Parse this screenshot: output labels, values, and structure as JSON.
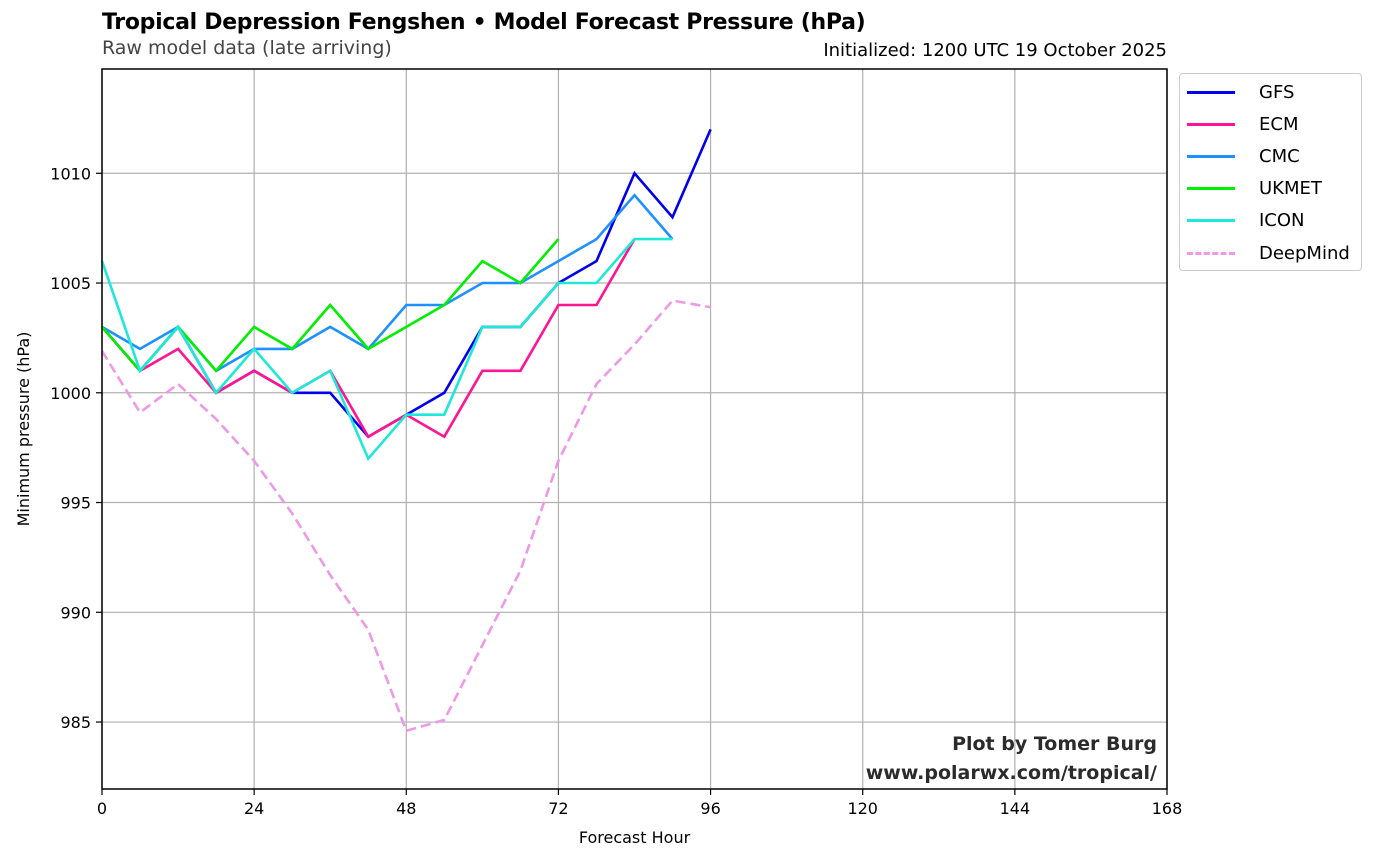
{
  "header": {
    "title": "Tropical Depression Fengshen • Model Forecast Pressure (hPa)",
    "subtitle": "Raw model data (late arriving)",
    "initialized": "Initialized: 1200 UTC 19 October 2025"
  },
  "credit": {
    "line1": "Plot by Tomer Burg",
    "line2": "www.polarwx.com/tropical/"
  },
  "chart_data": {
    "type": "line",
    "title": "Tropical Depression Fengshen • Model Forecast Pressure (hPa)",
    "subtitle": "Raw model data (late arriving)",
    "xlabel": "Forecast Hour",
    "ylabel": "Minimum pressure (hPa)",
    "xlim": [
      0,
      168
    ],
    "ylim": [
      981.95,
      1014.75
    ],
    "xticks": [
      0,
      24,
      48,
      72,
      96,
      120,
      144,
      168
    ],
    "xtick_labels": [
      "0",
      "24",
      "48",
      "72",
      "96",
      "120",
      "144",
      "168"
    ],
    "yticks": [
      985,
      990,
      995,
      1000,
      1005,
      1010
    ],
    "ytick_labels": [
      "985",
      "990",
      "995",
      "1000",
      "1005",
      "1010"
    ],
    "grid": true,
    "legend_position": "outside-top-right",
    "series": [
      {
        "name": "GFS",
        "color": "#0000ee",
        "dashed": false,
        "x": [
          0,
          6,
          12,
          18,
          24,
          30,
          36,
          42,
          48,
          54,
          60,
          66,
          72,
          78,
          84,
          90,
          96
        ],
        "values": [
          1003,
          1001,
          1003,
          1000,
          1001,
          1000,
          1000,
          998,
          999,
          1000,
          1003,
          1003,
          1005,
          1006,
          1010,
          1008,
          1012
        ]
      },
      {
        "name": "ECM",
        "color": "#ff1493",
        "dashed": false,
        "x": [
          0,
          6,
          12,
          18,
          24,
          30,
          36,
          42,
          48,
          54,
          60,
          66,
          72,
          78,
          84
        ],
        "values": [
          1003,
          1001,
          1002,
          1000,
          1001,
          1000,
          1001,
          998,
          999,
          998,
          1001,
          1001,
          1004,
          1004,
          1007
        ]
      },
      {
        "name": "CMC",
        "color": "#1e90ff",
        "dashed": false,
        "x": [
          0,
          6,
          12,
          18,
          24,
          30,
          36,
          42,
          48,
          54,
          60,
          66,
          72,
          78,
          84,
          90
        ],
        "values": [
          1003,
          1002,
          1003,
          1001,
          1002,
          1002,
          1003,
          1002,
          1004,
          1004,
          1005,
          1005,
          1006,
          1007,
          1009,
          1007
        ]
      },
      {
        "name": "UKMET",
        "color": "#00ee00",
        "dashed": false,
        "x": [
          0,
          6,
          12,
          18,
          24,
          30,
          36,
          42,
          48,
          54,
          60,
          66,
          72
        ],
        "values": [
          1003,
          1001,
          1003,
          1001,
          1003,
          1002,
          1004,
          1002,
          1003,
          1004,
          1006,
          1005,
          1007
        ]
      },
      {
        "name": "ICON",
        "color": "#20e8d8",
        "dashed": false,
        "x": [
          0,
          6,
          12,
          18,
          24,
          30,
          36,
          42,
          48,
          54,
          60,
          66,
          72,
          78,
          84,
          90
        ],
        "values": [
          1006,
          1001,
          1003,
          1000,
          1002,
          1000,
          1001,
          997,
          999,
          999,
          1003,
          1003,
          1005,
          1005,
          1007,
          1007
        ]
      },
      {
        "name": "DeepMind",
        "color": "#ee99e8",
        "dashed": true,
        "x": [
          0,
          6,
          12,
          18,
          24,
          30,
          36,
          42,
          48,
          54,
          60,
          66,
          72,
          78,
          84,
          90,
          96
        ],
        "values": [
          1001.9,
          999.1,
          1000.4,
          998.8,
          996.9,
          994.5,
          991.7,
          989.2,
          984.6,
          985.1,
          988.5,
          991.9,
          996.9,
          1000.4,
          1002.2,
          1004.2,
          1003.9
        ]
      }
    ]
  }
}
